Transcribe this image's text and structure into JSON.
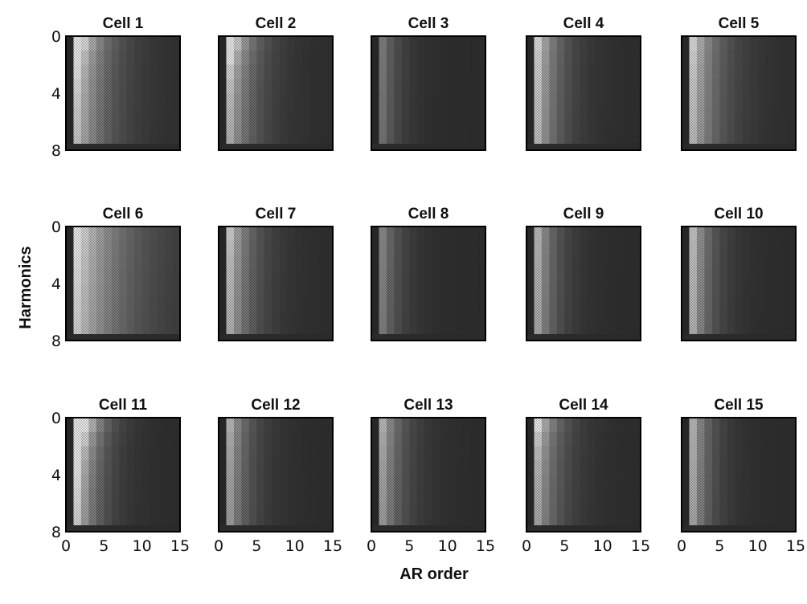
{
  "chart_data": {
    "type": "heatmap",
    "grid": {
      "rows": 3,
      "cols": 5
    },
    "xlabel": "AR order",
    "ylabel": "Harmonics",
    "xlim": [
      0,
      15
    ],
    "ylim": [
      0,
      8
    ],
    "x_ticks": [
      "0",
      "5",
      "10",
      "15"
    ],
    "y_ticks": [
      "0",
      "4",
      "8"
    ],
    "colormap": "gray",
    "panels": [
      {
        "title": "Cell 1",
        "peak_brightness": 0.95,
        "falloff_cols": 3.8,
        "top_boost": 0.25
      },
      {
        "title": "Cell 2",
        "peak_brightness": 0.85,
        "falloff_cols": 3.2,
        "top_boost": 0.3
      },
      {
        "title": "Cell 3",
        "peak_brightness": 0.55,
        "falloff_cols": 2.2,
        "top_boost": 0.0
      },
      {
        "title": "Cell 4",
        "peak_brightness": 0.9,
        "falloff_cols": 2.8,
        "top_boost": 0.05
      },
      {
        "title": "Cell 5",
        "peak_brightness": 0.9,
        "falloff_cols": 3.4,
        "top_boost": 0.05
      },
      {
        "title": "Cell 6",
        "peak_brightness": 1.0,
        "falloff_cols": 6.0,
        "top_boost": 0.05
      },
      {
        "title": "Cell 7",
        "peak_brightness": 0.85,
        "falloff_cols": 3.0,
        "top_boost": 0.05
      },
      {
        "title": "Cell 8",
        "peak_brightness": 0.6,
        "falloff_cols": 2.3,
        "top_boost": 0.0
      },
      {
        "title": "Cell 9",
        "peak_brightness": 0.8,
        "falloff_cols": 2.4,
        "top_boost": 0.0
      },
      {
        "title": "Cell 10",
        "peak_brightness": 0.85,
        "falloff_cols": 2.4,
        "top_boost": 0.0
      },
      {
        "title": "Cell 11",
        "peak_brightness": 1.0,
        "falloff_cols": 2.6,
        "top_boost": 0.55
      },
      {
        "title": "Cell 12",
        "peak_brightness": 0.75,
        "falloff_cols": 2.6,
        "top_boost": 0.05
      },
      {
        "title": "Cell 13",
        "peak_brightness": 0.75,
        "falloff_cols": 2.6,
        "top_boost": 0.05
      },
      {
        "title": "Cell 14",
        "peak_brightness": 0.8,
        "falloff_cols": 2.8,
        "top_boost": 0.2
      },
      {
        "title": "Cell 15",
        "peak_brightness": 0.8,
        "falloff_cols": 2.3,
        "top_boost": 0.0
      }
    ]
  }
}
